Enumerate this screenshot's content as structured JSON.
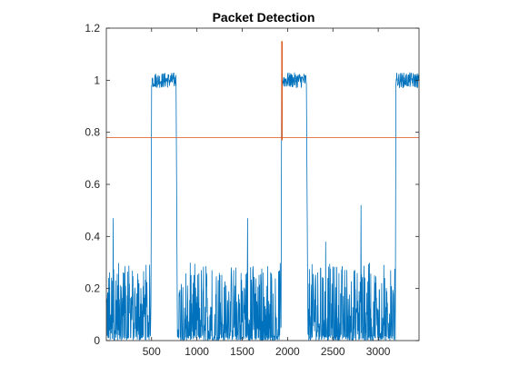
{
  "chart_data": {
    "type": "line",
    "title": "Packet Detection",
    "xlabel": "",
    "ylabel": "",
    "xlim": [
      1,
      3450
    ],
    "ylim": [
      0,
      1.2
    ],
    "xticks": [
      500,
      1000,
      1500,
      2000,
      2500,
      3000
    ],
    "yticks": [
      0,
      0.2,
      0.4,
      0.6,
      0.8,
      1,
      1.2
    ],
    "ytick_labels": [
      "0",
      "0.2",
      "0.4",
      "0.6",
      "0.8",
      "1",
      "1.2"
    ],
    "grid": false,
    "box": true,
    "series": [
      {
        "color": "#0072BD",
        "style": "noisy-line",
        "segments": [
          {
            "x_start": 1,
            "x_end": 495,
            "level": "noise"
          },
          {
            "x_start": 500,
            "x_end": 770,
            "level": "high"
          },
          {
            "x_start": 785,
            "x_end": 1930,
            "level": "noise"
          },
          {
            "x_start": 1935,
            "x_end": 2210,
            "level": "high"
          },
          {
            "x_start": 2225,
            "x_end": 3190,
            "level": "noise"
          },
          {
            "x_start": 3195,
            "x_end": 3450,
            "level": "high"
          }
        ],
        "spikes": [
          {
            "x": 75,
            "y": 0.47
          },
          {
            "x": 195,
            "y": 0.26
          },
          {
            "x": 1560,
            "y": 0.47
          },
          {
            "x": 2420,
            "y": 0.38
          },
          {
            "x": 2810,
            "y": 0.52
          }
        ],
        "noise_band": [
          0.0,
          0.3
        ],
        "high_band": [
          0.97,
          1.03
        ]
      },
      {
        "color": "#D95319",
        "points": [
          [
            1938,
            0.77
          ],
          [
            1938,
            1.15
          ]
        ]
      }
    ],
    "threshold": {
      "y": 0.78,
      "color": "#D95319"
    }
  }
}
